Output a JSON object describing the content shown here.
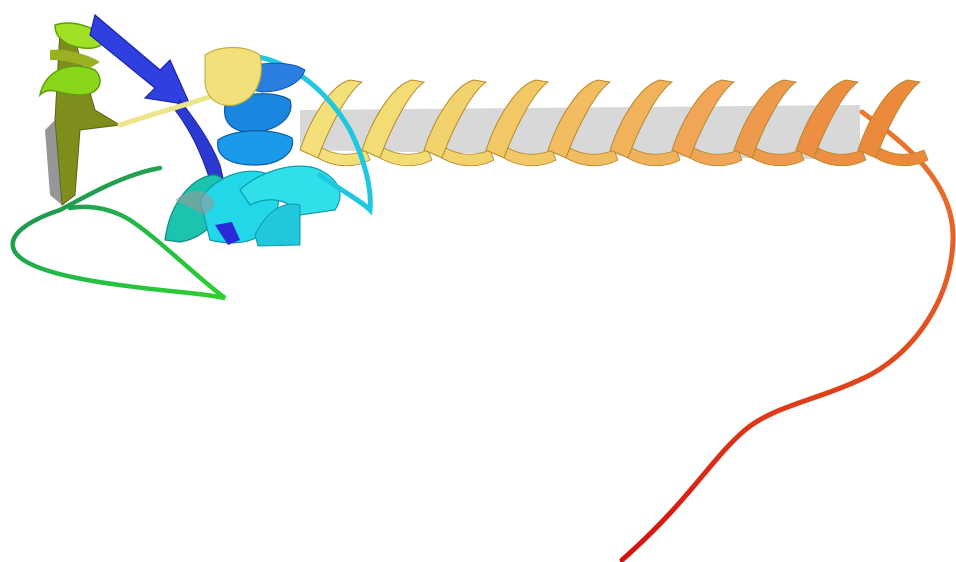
{
  "scene": {
    "background": "#ffffff",
    "representation": "cartoon",
    "color_scheme": "rainbow N-to-C",
    "colors": {
      "n_terminus": "#2a2ad8",
      "strand_blue": "#2f3fe0",
      "helix_blue": "#1a86e0",
      "helix_cyan": "#22d8e8",
      "teal": "#19b89a",
      "green_dark": "#1f7a55",
      "green": "#2fcf3a",
      "lime": "#8ad61a",
      "olive": "#8a9a1a",
      "yellow": "#f3e07a",
      "gold": "#f0c060",
      "orange_light": "#f0b060",
      "orange": "#ea8a3a",
      "orange_red": "#e8642a",
      "red": "#d81010",
      "helix_inner": "#a8a8a8"
    }
  }
}
